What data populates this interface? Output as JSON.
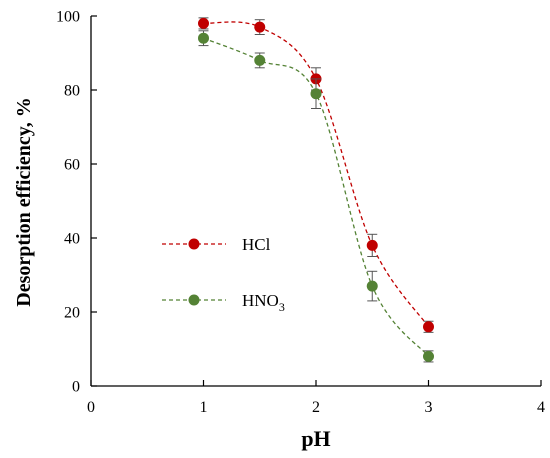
{
  "chart_data": {
    "type": "scatter",
    "xlabel": "pH",
    "ylabel": "Desorption efficiency, %",
    "xlim": [
      0,
      4
    ],
    "ylim": [
      0,
      100
    ],
    "xticks": [
      0,
      1,
      2,
      3,
      4
    ],
    "yticks": [
      0,
      20,
      40,
      60,
      80,
      100
    ],
    "grid": false,
    "legend_position": "center-left",
    "series": [
      {
        "name": "HCl",
        "name_main": "HCl",
        "name_sub": "",
        "color": "#c00000",
        "x": [
          1,
          1.5,
          2,
          2.5,
          3
        ],
        "values": [
          98,
          97,
          83,
          38,
          16
        ],
        "errors": [
          1.5,
          2,
          3,
          3,
          1.5
        ]
      },
      {
        "name": "HNO3",
        "name_main": "HNO",
        "name_sub": "3",
        "color": "#548235",
        "x": [
          1,
          1.5,
          2,
          2.5,
          3
        ],
        "values": [
          94,
          88,
          79,
          27,
          8
        ],
        "errors": [
          2,
          2,
          4,
          4,
          1.5
        ]
      }
    ]
  }
}
